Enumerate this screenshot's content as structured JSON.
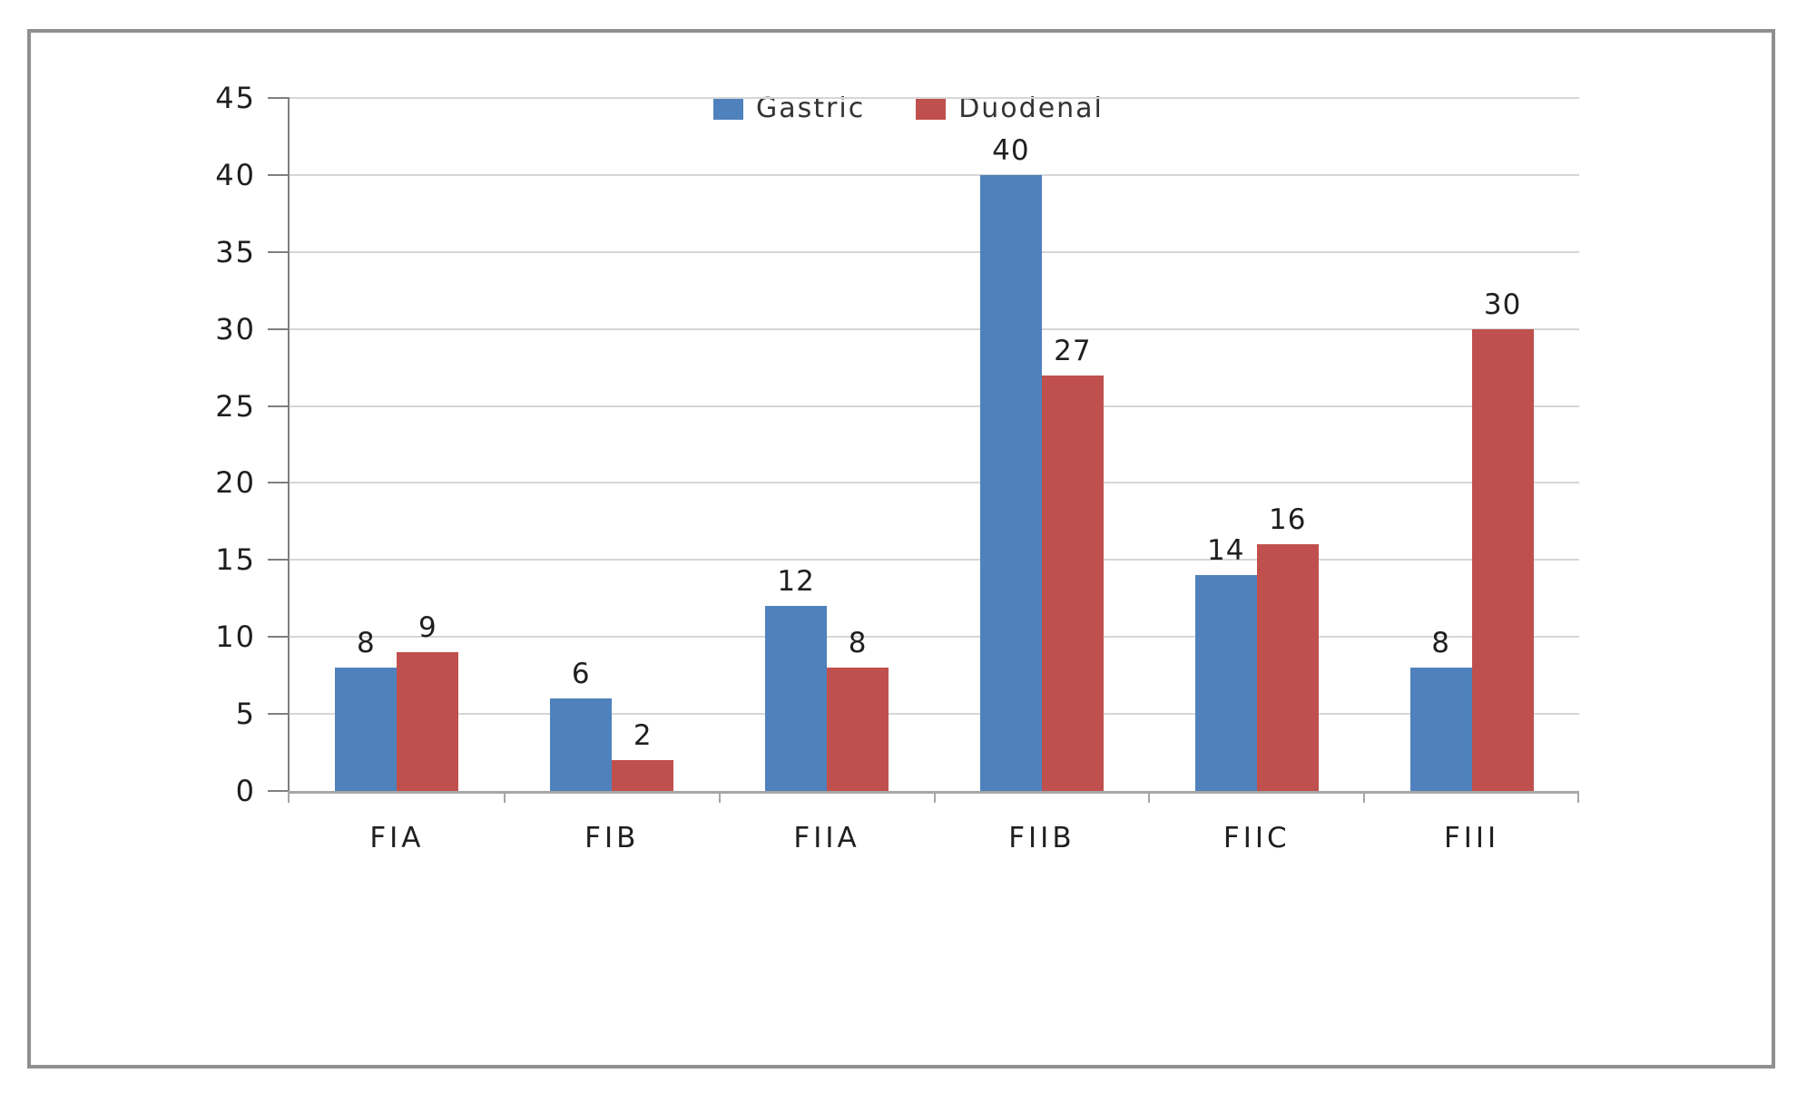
{
  "chart_data": {
    "type": "bar",
    "title": "",
    "xlabel": "",
    "ylabel": "",
    "categories": [
      "FIA",
      "FIB",
      "FIIA",
      "FIIB",
      "FIIC",
      "FIII"
    ],
    "series": [
      {
        "name": "Gastric",
        "color": "#4F81BD",
        "values": [
          8,
          6,
          12,
          40,
          14,
          8
        ]
      },
      {
        "name": "Duodenal",
        "color": "#C0504D",
        "values": [
          9,
          2,
          8,
          27,
          16,
          30
        ]
      }
    ],
    "ylim": [
      0,
      45
    ],
    "ytick_step": 5,
    "yticks": [
      0,
      5,
      10,
      15,
      20,
      25,
      30,
      35,
      40,
      45
    ],
    "grid": true,
    "legend_position": "top-center",
    "data_labels": true
  },
  "colors": {
    "gridline": "#D6D6D6",
    "y_axis": "#7F7F7F",
    "x_axis": "#A6A6A6",
    "label_text": "#1F1F1F",
    "frame_border": "#8F8F8F"
  }
}
